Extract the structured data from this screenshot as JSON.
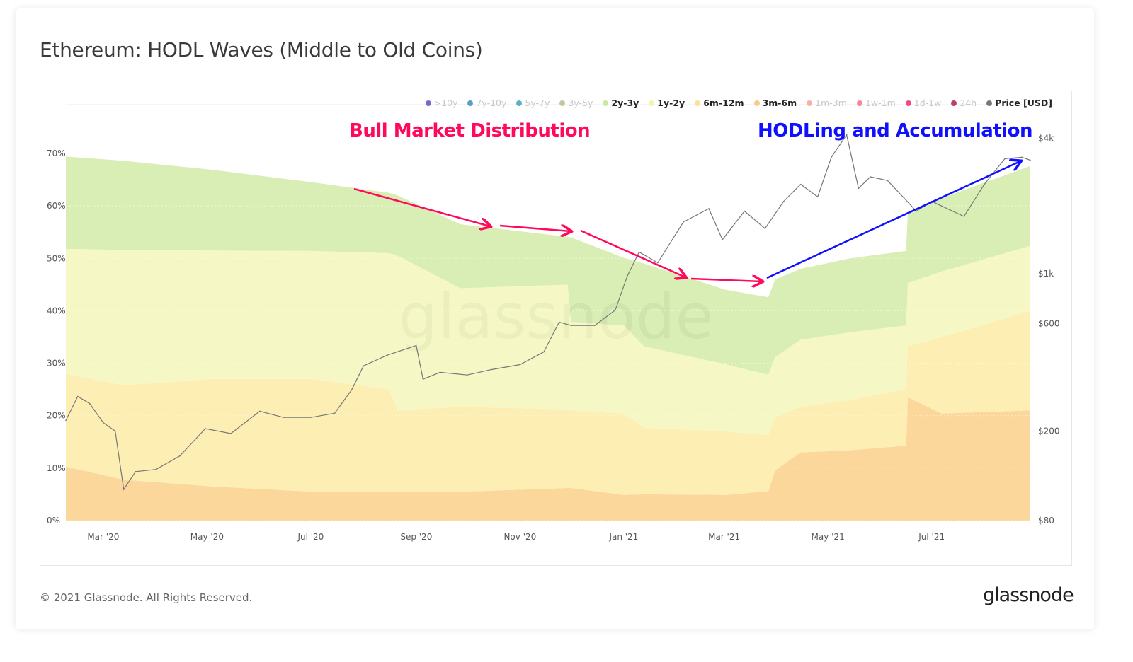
{
  "title": "Ethereum: HODL Waves (Middle to Old Coins)",
  "footer": "© 2021 Glassnode. All Rights Reserved.",
  "logo": "glassnode",
  "watermark": "glassnode",
  "annotations": {
    "left": {
      "text": "Bull Market Distribution",
      "color": "#ff0a5a"
    },
    "right": {
      "text": "HODLing and Accumulation",
      "color": "#1010ff"
    }
  },
  "legend": [
    {
      "label": ">10y",
      "color": "#5b52c0",
      "active": false
    },
    {
      "label": "7y-10y",
      "color": "#3d8fb0",
      "active": false
    },
    {
      "label": "5y-7y",
      "color": "#3aa3bb",
      "active": false
    },
    {
      "label": "3y-5y",
      "color": "#b4bf8f",
      "active": false
    },
    {
      "label": "2y-3y",
      "color": "#cde8a0",
      "active": true
    },
    {
      "label": "1y-2y",
      "color": "#f4f3b0",
      "active": true
    },
    {
      "label": "6m-12m",
      "color": "#fbe09a",
      "active": true
    },
    {
      "label": "3m-6m",
      "color": "#fbc98a",
      "active": true
    },
    {
      "label": "1m-3m",
      "color": "#f7a39a",
      "active": false
    },
    {
      "label": "1w-1m",
      "color": "#f7708a",
      "active": false
    },
    {
      "label": "1d-1w",
      "color": "#ef2d6a",
      "active": false
    },
    {
      "label": "24h",
      "color": "#b01f4a",
      "active": false
    },
    {
      "label": "Price [USD]",
      "color": "#777777",
      "active": true
    }
  ],
  "chart_data": {
    "type": "area",
    "stacked": true,
    "title": "Ethereum: HODL Waves (Middle to Old Coins)",
    "x_range": [
      "2020-02-08",
      "2021-08-28"
    ],
    "x_ticks": [
      "Mar '20",
      "May '20",
      "Jul '20",
      "Sep '20",
      "Nov '20",
      "Jan '21",
      "Mar '21",
      "May '21",
      "Jul '21"
    ],
    "x_tick_dates": [
      "2020-03-01",
      "2020-05-01",
      "2020-07-01",
      "2020-09-01",
      "2020-11-01",
      "2021-01-01",
      "2021-03-01",
      "2021-05-01",
      "2021-07-01"
    ],
    "y_left": {
      "ticks": [
        "0%",
        "10%",
        "20%",
        "30%",
        "40%",
        "50%",
        "60%",
        "70%"
      ],
      "range": [
        0,
        70
      ],
      "unit": "%"
    },
    "y_right": {
      "ticks": [
        "$80",
        "$200",
        "$600",
        "$1k",
        "$4k"
      ],
      "tick_values": [
        80,
        200,
        600,
        1000,
        4000
      ],
      "scale": "log"
    },
    "grid": true,
    "legend_position": "top-right",
    "dates": [
      "2020-02-08",
      "2020-03-13",
      "2020-05-04",
      "2020-07-02",
      "2020-08-16",
      "2020-08-21",
      "2020-09-27",
      "2020-11-29",
      "2020-12-01",
      "2021-01-01",
      "2021-01-13",
      "2021-03-02",
      "2021-03-27",
      "2021-03-31",
      "2021-04-15",
      "2021-05-14",
      "2021-06-16",
      "2021-06-17",
      "2021-07-07",
      "2021-08-28"
    ],
    "series": [
      {
        "name": "3m-6m",
        "color": "#fcd79b",
        "values": [
          10.3,
          7.8,
          6.5,
          5.5,
          5.4,
          5.4,
          5.5,
          6.2,
          6.2,
          4.9,
          5.0,
          4.9,
          5.6,
          9.6,
          13.0,
          13.4,
          14.3,
          23.5,
          20.4,
          21.0
        ]
      },
      {
        "name": "6m-12m",
        "color": "#fdeeb3",
        "values": [
          17.7,
          18.0,
          20.5,
          21.5,
          19.6,
          15.6,
          16.2,
          15.0,
          14.8,
          15.5,
          12.7,
          12.1,
          10.7,
          10.1,
          8.7,
          9.6,
          10.8,
          9.7,
          14.6,
          19.0
        ]
      },
      {
        "name": "1y-2y",
        "color": "#f5f8c5",
        "values": [
          23.8,
          25.8,
          24.5,
          24.4,
          26.0,
          29.5,
          22.6,
          23.8,
          16.9,
          16.8,
          15.5,
          12.8,
          11.5,
          11.5,
          12.8,
          12.9,
          12.1,
          12.1,
          12.5,
          12.4
        ]
      },
      {
        "name": "2y-3y",
        "color": "#d8eeb4",
        "values": [
          17.6,
          17.0,
          15.4,
          13.1,
          11.5,
          11.5,
          12.2,
          9.1,
          16.1,
          12.9,
          15.8,
          14.2,
          14.8,
          14.8,
          13.5,
          14.1,
          14.2,
          13.5,
          14.0,
          15.2
        ]
      }
    ],
    "price": {
      "name": "Price [USD]",
      "color": "#777777",
      "dates": [
        "2020-02-08",
        "2020-02-15",
        "2020-02-22",
        "2020-03-01",
        "2020-03-08",
        "2020-03-13",
        "2020-03-20",
        "2020-04-01",
        "2020-04-15",
        "2020-04-30",
        "2020-05-15",
        "2020-06-01",
        "2020-06-15",
        "2020-07-01",
        "2020-07-15",
        "2020-07-25",
        "2020-08-01",
        "2020-08-15",
        "2020-09-01",
        "2020-09-05",
        "2020-09-15",
        "2020-10-01",
        "2020-10-15",
        "2020-11-01",
        "2020-11-15",
        "2020-11-24",
        "2020-12-01",
        "2020-12-15",
        "2020-12-27",
        "2021-01-03",
        "2021-01-10",
        "2021-01-21",
        "2021-02-05",
        "2021-02-20",
        "2021-02-28",
        "2021-03-13",
        "2021-03-25",
        "2021-04-05",
        "2021-04-15",
        "2021-04-25",
        "2021-05-03",
        "2021-05-12",
        "2021-05-19",
        "2021-05-26",
        "2021-06-05",
        "2021-06-22",
        "2021-07-01",
        "2021-07-20",
        "2021-08-01",
        "2021-08-13",
        "2021-08-23",
        "2021-08-28"
      ],
      "values": [
        223,
        285,
        265,
        218,
        200,
        110,
        132,
        135,
        155,
        205,
        195,
        245,
        230,
        230,
        240,
        305,
        390,
        435,
        480,
        340,
        365,
        355,
        375,
        395,
        450,
        610,
        590,
        590,
        690,
        975,
        1250,
        1120,
        1700,
        1950,
        1420,
        1900,
        1590,
        2100,
        2500,
        2200,
        3300,
        4150,
        2400,
        2700,
        2600,
        1900,
        2100,
        1800,
        2500,
        3250,
        3300,
        3200
      ]
    }
  }
}
